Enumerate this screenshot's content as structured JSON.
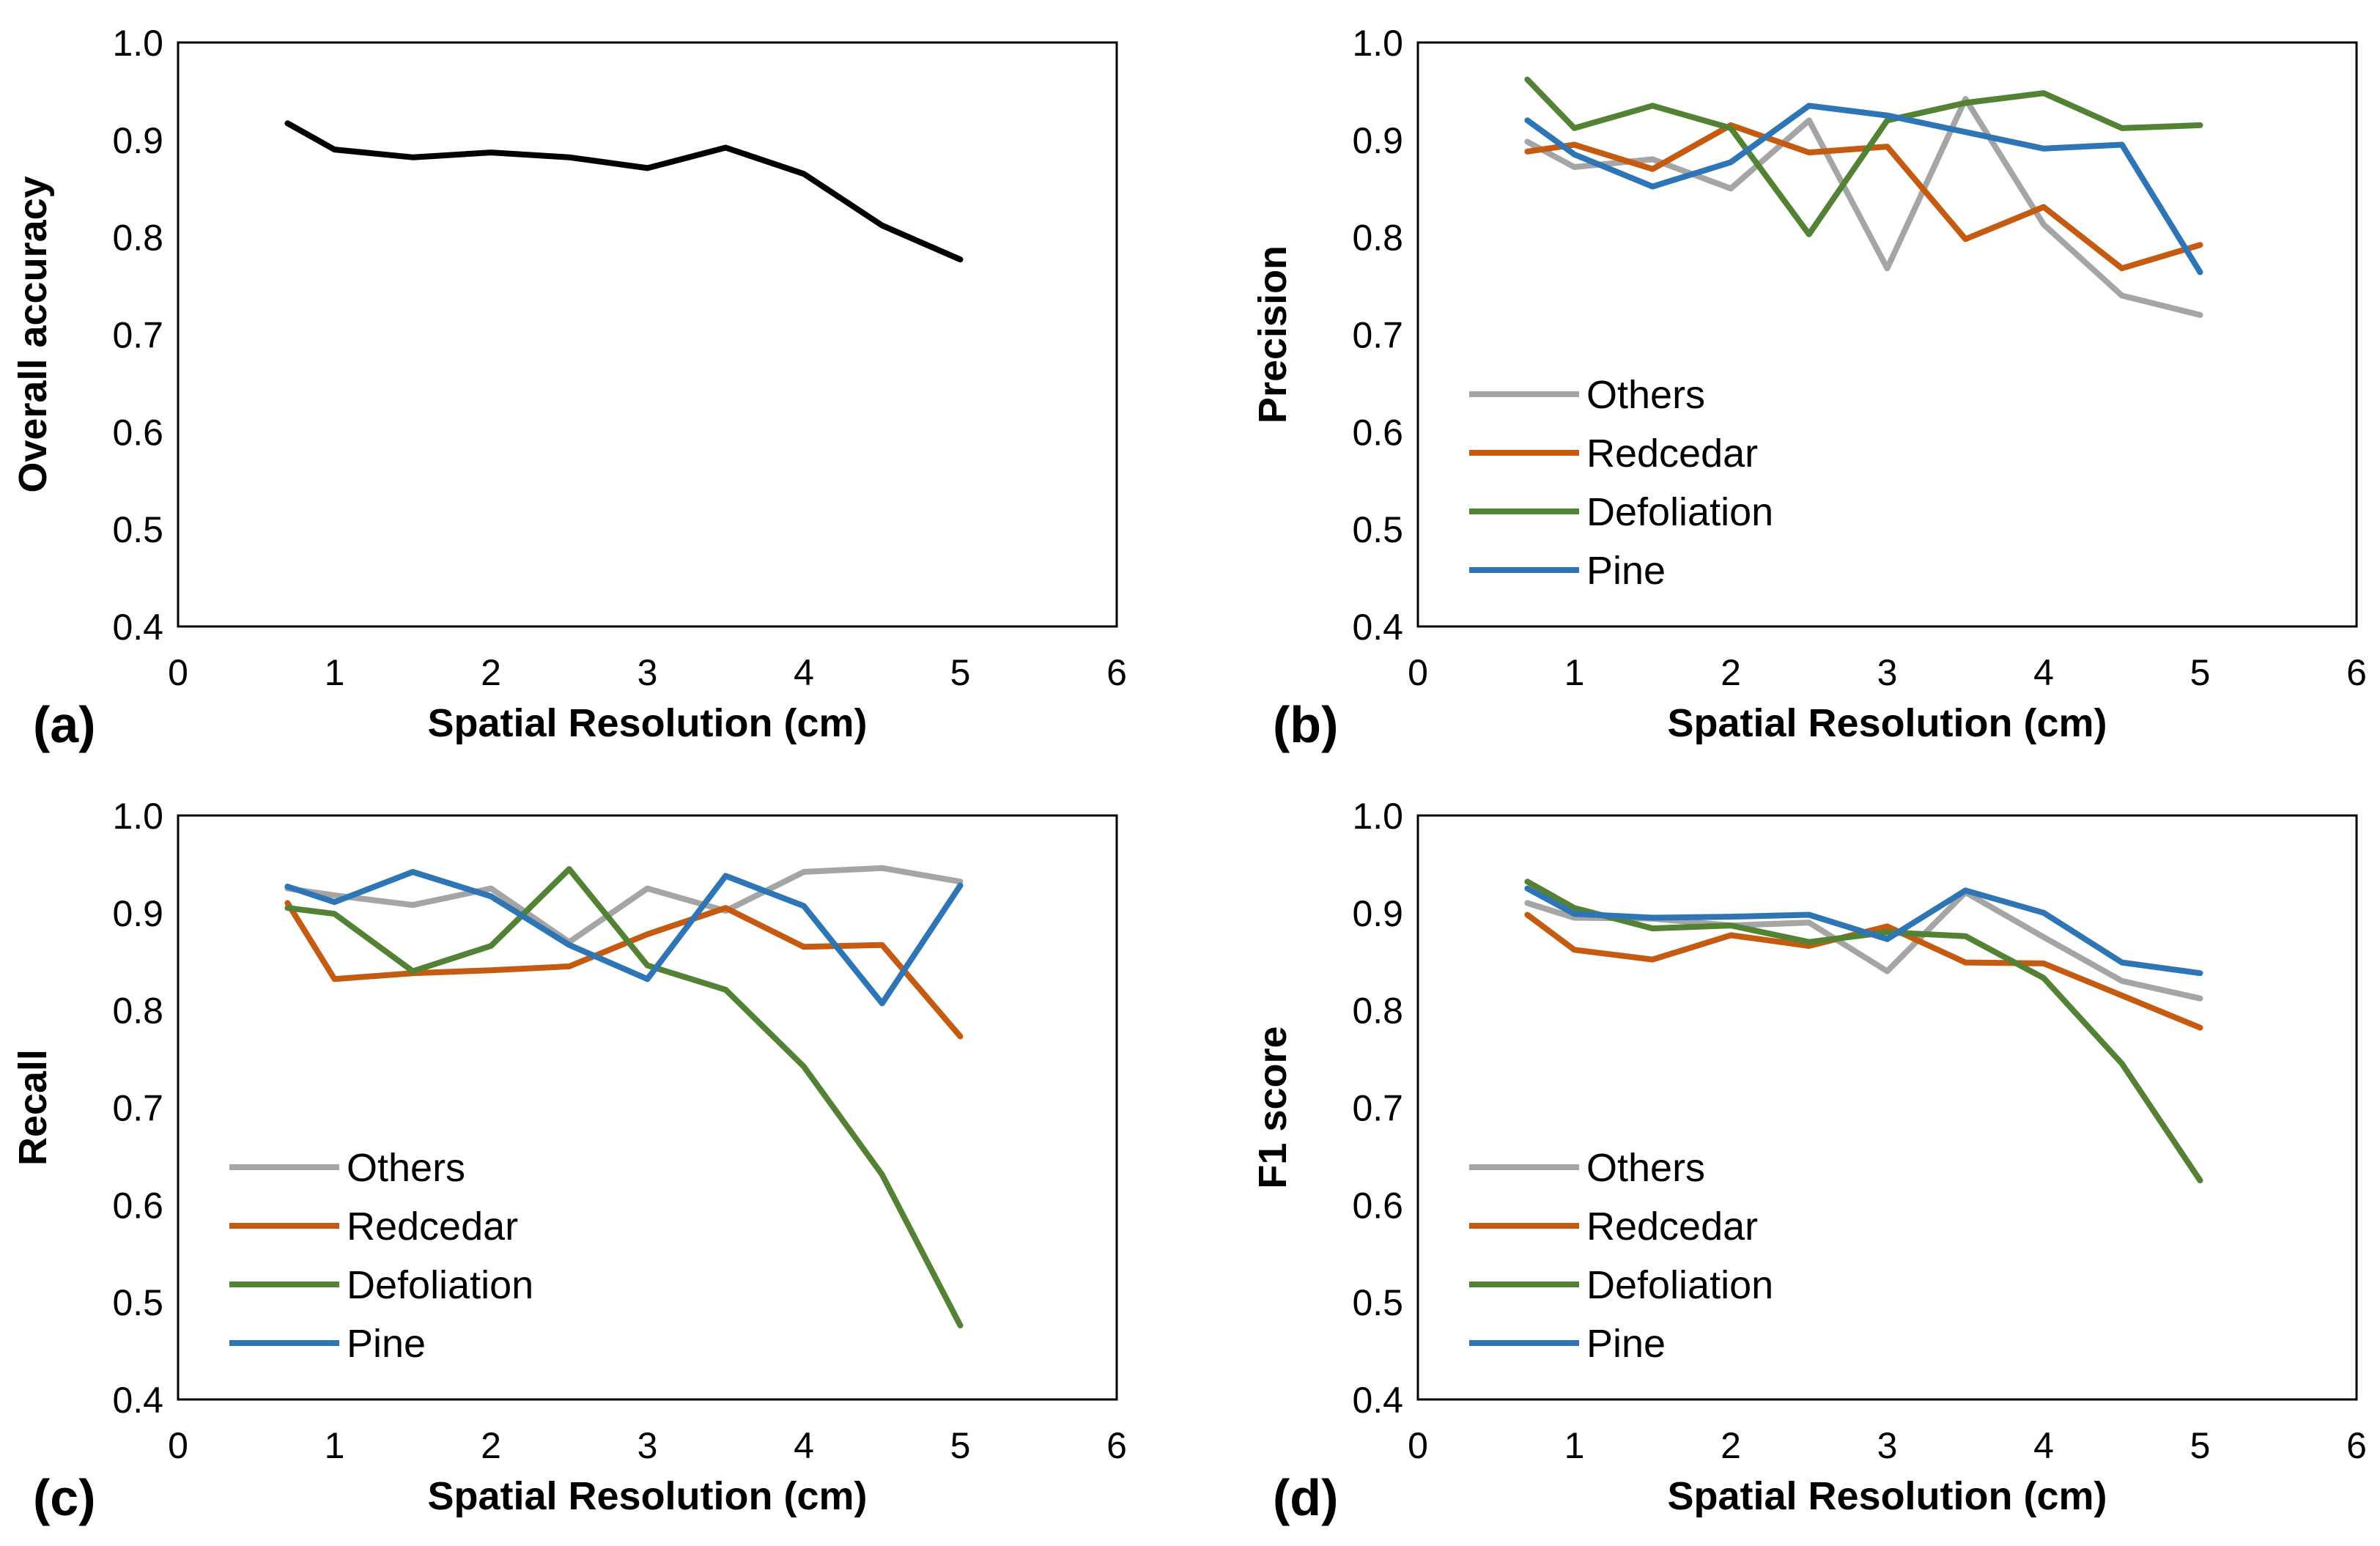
{
  "chart_data": [
    {
      "type": "line",
      "panel_label": "(a)",
      "title": "",
      "xlabel": "Spatial Resolution (cm)",
      "ylabel": "Overall accuracy",
      "xlim": [
        0,
        6
      ],
      "ylim": [
        0.4,
        1.0
      ],
      "xticks": [
        "0",
        "1",
        "2",
        "3",
        "4",
        "5",
        "6"
      ],
      "yticks": [
        "0.4",
        "0.5",
        "0.6",
        "0.7",
        "0.8",
        "0.9",
        "1.0"
      ],
      "grid": false,
      "legend": null,
      "x": [
        0.7,
        1,
        1.5,
        2,
        2.5,
        3,
        3.5,
        4,
        4.5,
        5
      ],
      "series": [
        {
          "name": "Overall accuracy",
          "color": "#000000",
          "values": [
            0.917,
            0.89,
            0.882,
            0.887,
            0.882,
            0.871,
            0.892,
            0.865,
            0.812,
            0.777
          ]
        }
      ]
    },
    {
      "type": "line",
      "panel_label": "(b)",
      "title": "",
      "xlabel": "Spatial Resolution (cm)",
      "ylabel": "Precision",
      "xlim": [
        0,
        6
      ],
      "ylim": [
        0.4,
        1.0
      ],
      "xticks": [
        "0",
        "1",
        "2",
        "3",
        "4",
        "5",
        "6"
      ],
      "yticks": [
        "0.4",
        "0.5",
        "0.6",
        "0.7",
        "0.8",
        "0.9",
        "1.0"
      ],
      "grid": false,
      "legend": "middle-left",
      "x": [
        0.7,
        1,
        1.5,
        2,
        2.5,
        3,
        3.5,
        4,
        4.5,
        5
      ],
      "series": [
        {
          "name": "Others",
          "color": "#a5a5a5",
          "values": [
            0.898,
            0.872,
            0.88,
            0.85,
            0.92,
            0.768,
            0.942,
            0.813,
            0.74,
            0.72
          ]
        },
        {
          "name": "Redcedar",
          "color": "#c55a11",
          "values": [
            0.888,
            0.895,
            0.87,
            0.915,
            0.887,
            0.893,
            0.798,
            0.831,
            0.768,
            0.792
          ]
        },
        {
          "name": "Defoliation",
          "color": "#548235",
          "values": [
            0.962,
            0.912,
            0.935,
            0.912,
            0.803,
            0.92,
            0.938,
            0.948,
            0.912,
            0.915
          ]
        },
        {
          "name": "Pine",
          "color": "#2e75b6",
          "values": [
            0.92,
            0.885,
            0.852,
            0.877,
            0.935,
            0.925,
            0.908,
            0.891,
            0.895,
            0.764
          ]
        }
      ]
    },
    {
      "type": "line",
      "panel_label": "(c)",
      "title": "",
      "xlabel": "Spatial Resolution (cm)",
      "ylabel": "Recall",
      "xlim": [
        0,
        6
      ],
      "ylim": [
        0.4,
        1.0
      ],
      "xticks": [
        "0",
        "1",
        "2",
        "3",
        "4",
        "5",
        "6"
      ],
      "yticks": [
        "0.4",
        "0.5",
        "0.6",
        "0.7",
        "0.8",
        "0.9",
        "1.0"
      ],
      "grid": false,
      "legend": "lower-left",
      "x": [
        0.7,
        1,
        1.5,
        2,
        2.5,
        3,
        3.5,
        4,
        4.5,
        5
      ],
      "series": [
        {
          "name": "Others",
          "color": "#a5a5a5",
          "values": [
            0.925,
            0.918,
            0.908,
            0.925,
            0.87,
            0.925,
            0.902,
            0.942,
            0.946,
            0.932
          ]
        },
        {
          "name": "Redcedar",
          "color": "#c55a11",
          "values": [
            0.91,
            0.832,
            0.838,
            0.841,
            0.845,
            0.878,
            0.905,
            0.865,
            0.867,
            0.773
          ]
        },
        {
          "name": "Defoliation",
          "color": "#548235",
          "values": [
            0.905,
            0.899,
            0.84,
            0.866,
            0.945,
            0.846,
            0.821,
            0.742,
            0.631,
            0.476
          ]
        },
        {
          "name": "Pine",
          "color": "#2e75b6",
          "values": [
            0.927,
            0.911,
            0.942,
            0.917,
            0.867,
            0.832,
            0.938,
            0.907,
            0.807,
            0.928
          ]
        }
      ]
    },
    {
      "type": "line",
      "panel_label": "(d)",
      "title": "",
      "xlabel": "Spatial Resolution (cm)",
      "ylabel": "F1 score",
      "xlim": [
        0,
        6
      ],
      "ylim": [
        0.4,
        1.0
      ],
      "xticks": [
        "0",
        "1",
        "2",
        "3",
        "4",
        "5",
        "6"
      ],
      "yticks": [
        "0.4",
        "0.5",
        "0.6",
        "0.7",
        "0.8",
        "0.9",
        "1.0"
      ],
      "grid": false,
      "legend": "lower-left",
      "x": [
        0.7,
        1,
        1.5,
        2,
        2.5,
        3,
        3.5,
        4,
        4.5,
        5
      ],
      "series": [
        {
          "name": "Others",
          "color": "#a5a5a5",
          "values": [
            0.91,
            0.895,
            0.894,
            0.887,
            0.89,
            0.84,
            0.921,
            0.875,
            0.83,
            0.812
          ]
        },
        {
          "name": "Redcedar",
          "color": "#c55a11",
          "values": [
            0.898,
            0.862,
            0.852,
            0.877,
            0.866,
            0.886,
            0.849,
            0.848,
            0.815,
            0.782
          ]
        },
        {
          "name": "Defoliation",
          "color": "#548235",
          "values": [
            0.932,
            0.905,
            0.884,
            0.887,
            0.87,
            0.88,
            0.876,
            0.833,
            0.745,
            0.625
          ]
        },
        {
          "name": "Pine",
          "color": "#2e75b6",
          "values": [
            0.925,
            0.899,
            0.895,
            0.896,
            0.898,
            0.873,
            0.923,
            0.9,
            0.849,
            0.838
          ]
        }
      ]
    }
  ]
}
